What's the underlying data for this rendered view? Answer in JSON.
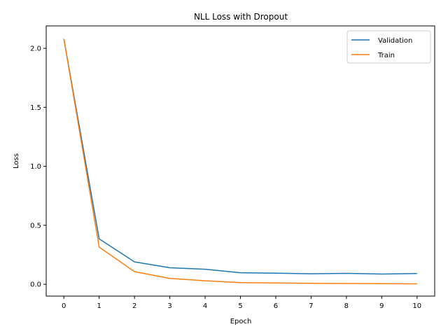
{
  "chart_data": {
    "type": "line",
    "title": "NLL Loss with Dropout",
    "xlabel": "Epoch",
    "ylabel": "Loss",
    "x": [
      0,
      1,
      2,
      3,
      4,
      5,
      6,
      7,
      8,
      9,
      10
    ],
    "xticks": [
      "0",
      "1",
      "2",
      "3",
      "4",
      "5",
      "6",
      "7",
      "8",
      "9",
      "10"
    ],
    "yticks": [
      "0.0",
      "0.5",
      "1.0",
      "1.5",
      "2.0"
    ],
    "xlim": [
      -0.5,
      10.5
    ],
    "ylim": [
      -0.1,
      2.19
    ],
    "grid": false,
    "legend_position": "top-right",
    "series": [
      {
        "name": "Validation",
        "color": "#1f77b4",
        "values": [
          2.08,
          0.385,
          0.19,
          0.14,
          0.128,
          0.098,
          0.094,
          0.089,
          0.093,
          0.087,
          0.091
        ]
      },
      {
        "name": "Train",
        "color": "#ff7f0e",
        "values": [
          2.08,
          0.315,
          0.107,
          0.05,
          0.03,
          0.014,
          0.011,
          0.008,
          0.007,
          0.005,
          0.004
        ]
      }
    ]
  }
}
